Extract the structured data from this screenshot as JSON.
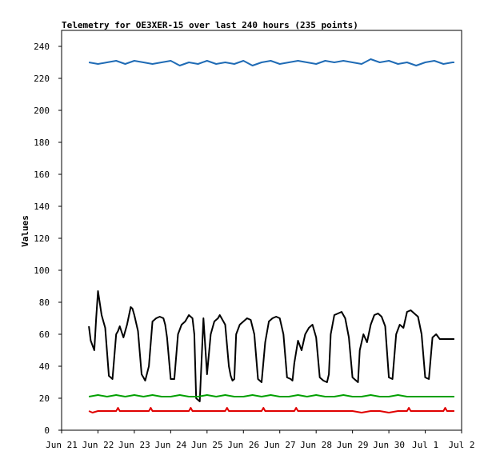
{
  "chart_data": {
    "type": "line",
    "title": "Telemetry for OE3XER-15 over last 240 hours (235 points)",
    "xlabel": "",
    "ylabel": "Values",
    "x_ticks": [
      "Jun 21",
      "Jun 22",
      "Jun 23",
      "Jun 24",
      "Jun 25",
      "Jun 26",
      "Jun 27",
      "Jun 28",
      "Jun 29",
      "Jun 30",
      "Jul 1",
      "Jul 2"
    ],
    "xlim": [
      0,
      11
    ],
    "ylim": [
      0,
      250
    ],
    "y_ticks": [
      0,
      20,
      40,
      60,
      80,
      100,
      120,
      140,
      160,
      180,
      200,
      220,
      240
    ],
    "grid": false,
    "legend": "none",
    "series": [
      {
        "color": "#1f6bb5",
        "x": [
          0.75,
          1.0,
          1.25,
          1.5,
          1.75,
          2.0,
          2.25,
          2.5,
          2.75,
          3.0,
          3.25,
          3.5,
          3.75,
          4.0,
          4.25,
          4.5,
          4.75,
          5.0,
          5.25,
          5.5,
          5.75,
          6.0,
          6.25,
          6.5,
          6.75,
          7.0,
          7.25,
          7.5,
          7.75,
          8.0,
          8.25,
          8.5,
          8.75,
          9.0,
          9.25,
          9.5,
          9.75,
          10.0,
          10.25,
          10.5,
          10.75,
          10.8
        ],
        "y": [
          230,
          229,
          230,
          231,
          229,
          231,
          230,
          229,
          230,
          231,
          228,
          230,
          229,
          231,
          229,
          230,
          229,
          231,
          228,
          230,
          231,
          229,
          230,
          231,
          230,
          229,
          231,
          230,
          231,
          230,
          229,
          232,
          230,
          231,
          229,
          230,
          228,
          230,
          231,
          229,
          230,
          230
        ]
      },
      {
        "color": "#000000",
        "x": [
          0.75,
          0.8,
          0.9,
          0.95,
          1.0,
          1.1,
          1.2,
          1.3,
          1.35,
          1.4,
          1.5,
          1.55,
          1.6,
          1.7,
          1.8,
          1.9,
          1.95,
          2.0,
          2.1,
          2.2,
          2.25,
          2.3,
          2.4,
          2.5,
          2.6,
          2.7,
          2.8,
          2.85,
          2.9,
          3.0,
          3.1,
          3.2,
          3.3,
          3.4,
          3.5,
          3.6,
          3.65,
          3.7,
          3.8,
          3.9,
          4.0,
          4.1,
          4.2,
          4.3,
          4.35,
          4.4,
          4.5,
          4.6,
          4.65,
          4.7,
          4.75,
          4.8,
          4.9,
          5.0,
          5.1,
          5.2,
          5.3,
          5.4,
          5.45,
          5.5,
          5.6,
          5.7,
          5.8,
          5.9,
          6.0,
          6.1,
          6.2,
          6.3,
          6.35,
          6.4,
          6.5,
          6.6,
          6.7,
          6.8,
          6.9,
          7.0,
          7.1,
          7.2,
          7.3,
          7.35,
          7.4,
          7.5,
          7.6,
          7.7,
          7.8,
          7.9,
          8.0,
          8.1,
          8.15,
          8.2,
          8.3,
          8.4,
          8.5,
          8.6,
          8.7,
          8.8,
          8.9,
          9.0,
          9.1,
          9.2,
          9.3,
          9.4,
          9.5,
          9.6,
          9.7,
          9.8,
          9.9,
          10.0,
          10.1,
          10.2,
          10.3,
          10.4,
          10.5,
          10.6,
          10.7,
          10.75,
          10.8
        ],
        "y": [
          65,
          56,
          50,
          70,
          87,
          72,
          64,
          34,
          33,
          32,
          60,
          62,
          65,
          58,
          66,
          77,
          76,
          72,
          62,
          35,
          33,
          31,
          40,
          68,
          70,
          71,
          70,
          66,
          58,
          32,
          32,
          60,
          66,
          68,
          72,
          70,
          60,
          20,
          18,
          70,
          35,
          60,
          68,
          70,
          72,
          70,
          66,
          40,
          34,
          31,
          32,
          60,
          66,
          68,
          70,
          69,
          60,
          32,
          31,
          30,
          55,
          68,
          70,
          71,
          70,
          60,
          33,
          32,
          31,
          42,
          56,
          50,
          60,
          64,
          66,
          58,
          33,
          31,
          30,
          35,
          60,
          72,
          73,
          74,
          70,
          58,
          33,
          31,
          30,
          50,
          60,
          55,
          66,
          72,
          73,
          71,
          65,
          33,
          32,
          60,
          66,
          64,
          74,
          75,
          73,
          71,
          60,
          33,
          32,
          58,
          60,
          57,
          57,
          57,
          57,
          57,
          57
        ]
      },
      {
        "color": "#00a000",
        "x": [
          0.75,
          1.0,
          1.25,
          1.5,
          1.75,
          2.0,
          2.25,
          2.5,
          2.75,
          3.0,
          3.25,
          3.5,
          3.75,
          4.0,
          4.25,
          4.5,
          4.75,
          5.0,
          5.25,
          5.5,
          5.75,
          6.0,
          6.25,
          6.5,
          6.75,
          7.0,
          7.25,
          7.5,
          7.75,
          8.0,
          8.25,
          8.5,
          8.75,
          9.0,
          9.25,
          9.5,
          9.75,
          10.0,
          10.25,
          10.5,
          10.75,
          10.8
        ],
        "y": [
          21,
          22,
          21,
          22,
          21,
          22,
          21,
          22,
          21,
          21,
          22,
          21,
          21,
          22,
          21,
          22,
          21,
          21,
          22,
          21,
          22,
          21,
          21,
          22,
          21,
          22,
          21,
          21,
          22,
          21,
          21,
          22,
          21,
          21,
          22,
          21,
          21,
          21,
          21,
          21,
          21,
          21
        ]
      },
      {
        "color": "#e00000",
        "x": [
          0.75,
          0.85,
          1.0,
          1.25,
          1.5,
          1.55,
          1.6,
          1.75,
          2.0,
          2.25,
          2.4,
          2.45,
          2.5,
          2.75,
          3.0,
          3.25,
          3.5,
          3.55,
          3.6,
          3.75,
          4.0,
          4.25,
          4.5,
          4.55,
          4.6,
          4.75,
          5.0,
          5.25,
          5.5,
          5.55,
          5.6,
          5.75,
          6.0,
          6.25,
          6.4,
          6.45,
          6.5,
          6.75,
          7.0,
          7.25,
          7.5,
          7.75,
          8.0,
          8.25,
          8.5,
          8.55,
          8.6,
          8.75,
          9.0,
          9.25,
          9.5,
          9.55,
          9.6,
          9.75,
          10.0,
          10.25,
          10.5,
          10.55,
          10.6,
          10.75,
          10.8
        ],
        "y": [
          12,
          11,
          12,
          12,
          12,
          14,
          12,
          12,
          12,
          12,
          12,
          14,
          12,
          12,
          12,
          12,
          12,
          14,
          12,
          12,
          12,
          12,
          12,
          14,
          12,
          12,
          12,
          12,
          12,
          14,
          12,
          12,
          12,
          12,
          12,
          14,
          12,
          12,
          12,
          12,
          12,
          12,
          12,
          11,
          12,
          12,
          12,
          12,
          11,
          12,
          12,
          14,
          12,
          12,
          12,
          12,
          12,
          14,
          12,
          12,
          12
        ]
      }
    ]
  }
}
